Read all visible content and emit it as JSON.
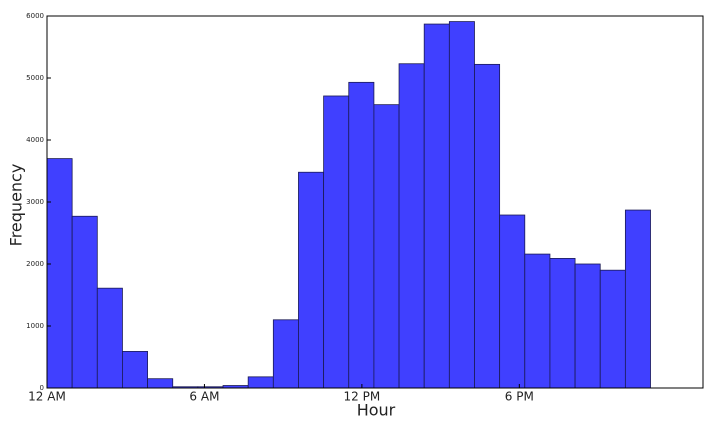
{
  "chart_data": {
    "type": "histogram",
    "x_label": "Hour",
    "y_label": "Frequency",
    "bins": [
      0,
      0.9583,
      1.9167,
      2.875,
      3.8333,
      4.7917,
      5.75,
      6.7083,
      7.6667,
      8.625,
      9.5833,
      10.5417,
      11.5,
      12.4583,
      13.4167,
      14.375,
      15.3333,
      16.2917,
      17.25,
      18.2083,
      19.1667,
      20.125,
      21.0833,
      22.0417,
      23
    ],
    "values": [
      3700,
      2770,
      1610,
      590,
      150,
      20,
      20,
      40,
      180,
      1100,
      3480,
      4710,
      4930,
      4570,
      5230,
      5870,
      5910,
      5220,
      2790,
      2160,
      2090,
      2000,
      1900,
      2870
    ],
    "color": "#4040ff",
    "xlim": [
      0,
      25
    ],
    "ylim": [
      0,
      6000
    ],
    "xticks": [
      {
        "value": 0,
        "label": "12 AM"
      },
      {
        "value": 6,
        "label": "6 AM"
      },
      {
        "value": 12,
        "label": "12 PM"
      },
      {
        "value": 18,
        "label": "6 PM"
      }
    ],
    "yticks": [
      0,
      1000,
      2000,
      3000,
      4000,
      5000,
      6000
    ]
  }
}
